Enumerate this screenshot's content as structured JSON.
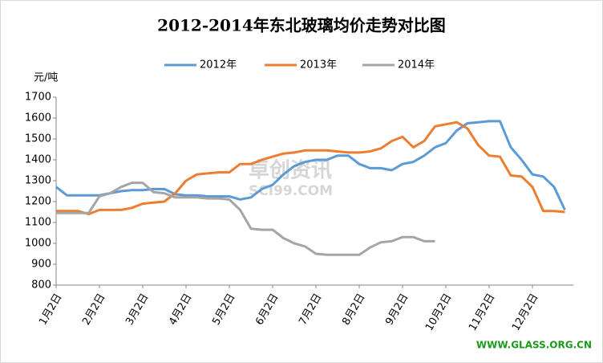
{
  "chart_data": {
    "type": "line",
    "title": "2012-2014年东北玻璃均价走势对比图",
    "y_label": "元/吨",
    "annotations": [
      "卓创资讯",
      "SCI99.COM",
      "WWW.GLASS.ORG.CN"
    ],
    "categories": [
      "1月2日",
      null,
      null,
      null,
      "2月2日",
      null,
      null,
      null,
      "3月2日",
      null,
      null,
      null,
      "4月2日",
      null,
      null,
      null,
      "5月2日",
      null,
      null,
      null,
      "6月2日",
      null,
      null,
      null,
      "7月2日",
      null,
      null,
      null,
      "8月2日",
      null,
      null,
      null,
      "9月2日",
      null,
      null,
      null,
      "10月2日",
      null,
      null,
      null,
      "11月2日",
      null,
      null,
      null,
      "12月2日",
      null,
      null,
      null
    ],
    "series": [
      {
        "name": "2012年",
        "color": "#5b9bd5",
        "values": [
          1270,
          1230,
          1230,
          1230,
          1230,
          1240,
          1250,
          1255,
          1255,
          1260,
          1260,
          1235,
          1230,
          1230,
          1225,
          1225,
          1225,
          1210,
          1220,
          1260,
          1280,
          1330,
          1370,
          1390,
          1400,
          1400,
          1420,
          1420,
          1380,
          1360,
          1360,
          1350,
          1380,
          1390,
          1420,
          1460,
          1480,
          1540,
          1575,
          1580,
          1585,
          1585,
          1460,
          1400,
          1330,
          1320,
          1270,
          1160
        ]
      },
      {
        "name": "2013年",
        "color": "#ed7d31",
        "values": [
          1155,
          1155,
          1155,
          1140,
          1160,
          1160,
          1160,
          1170,
          1190,
          1195,
          1200,
          1240,
          1300,
          1330,
          1335,
          1340,
          1340,
          1380,
          1380,
          1400,
          1415,
          1430,
          1435,
          1445,
          1445,
          1445,
          1440,
          1435,
          1435,
          1440,
          1455,
          1490,
          1510,
          1460,
          1490,
          1560,
          1570,
          1580,
          1550,
          1470,
          1420,
          1415,
          1325,
          1320,
          1270,
          1155,
          1155,
          1150
        ]
      },
      {
        "name": "2014年",
        "color": "#a5a5a5",
        "values": [
          1145,
          1145,
          1145,
          1145,
          1225,
          1240,
          1270,
          1290,
          1290,
          1245,
          1240,
          1220,
          1220,
          1220,
          1215,
          1215,
          1210,
          1160,
          1070,
          1065,
          1065,
          1025,
          1000,
          985,
          950,
          945,
          945,
          945,
          945,
          980,
          1005,
          1010,
          1030,
          1030,
          1010,
          1010,
          null,
          null,
          null,
          null,
          null,
          null,
          null,
          null,
          null,
          null,
          null,
          null
        ]
      }
    ],
    "ylim": [
      800,
      1700
    ],
    "yticks": [
      800,
      900,
      1000,
      1100,
      1200,
      1300,
      1400,
      1500,
      1600,
      1700
    ],
    "grid": false
  }
}
